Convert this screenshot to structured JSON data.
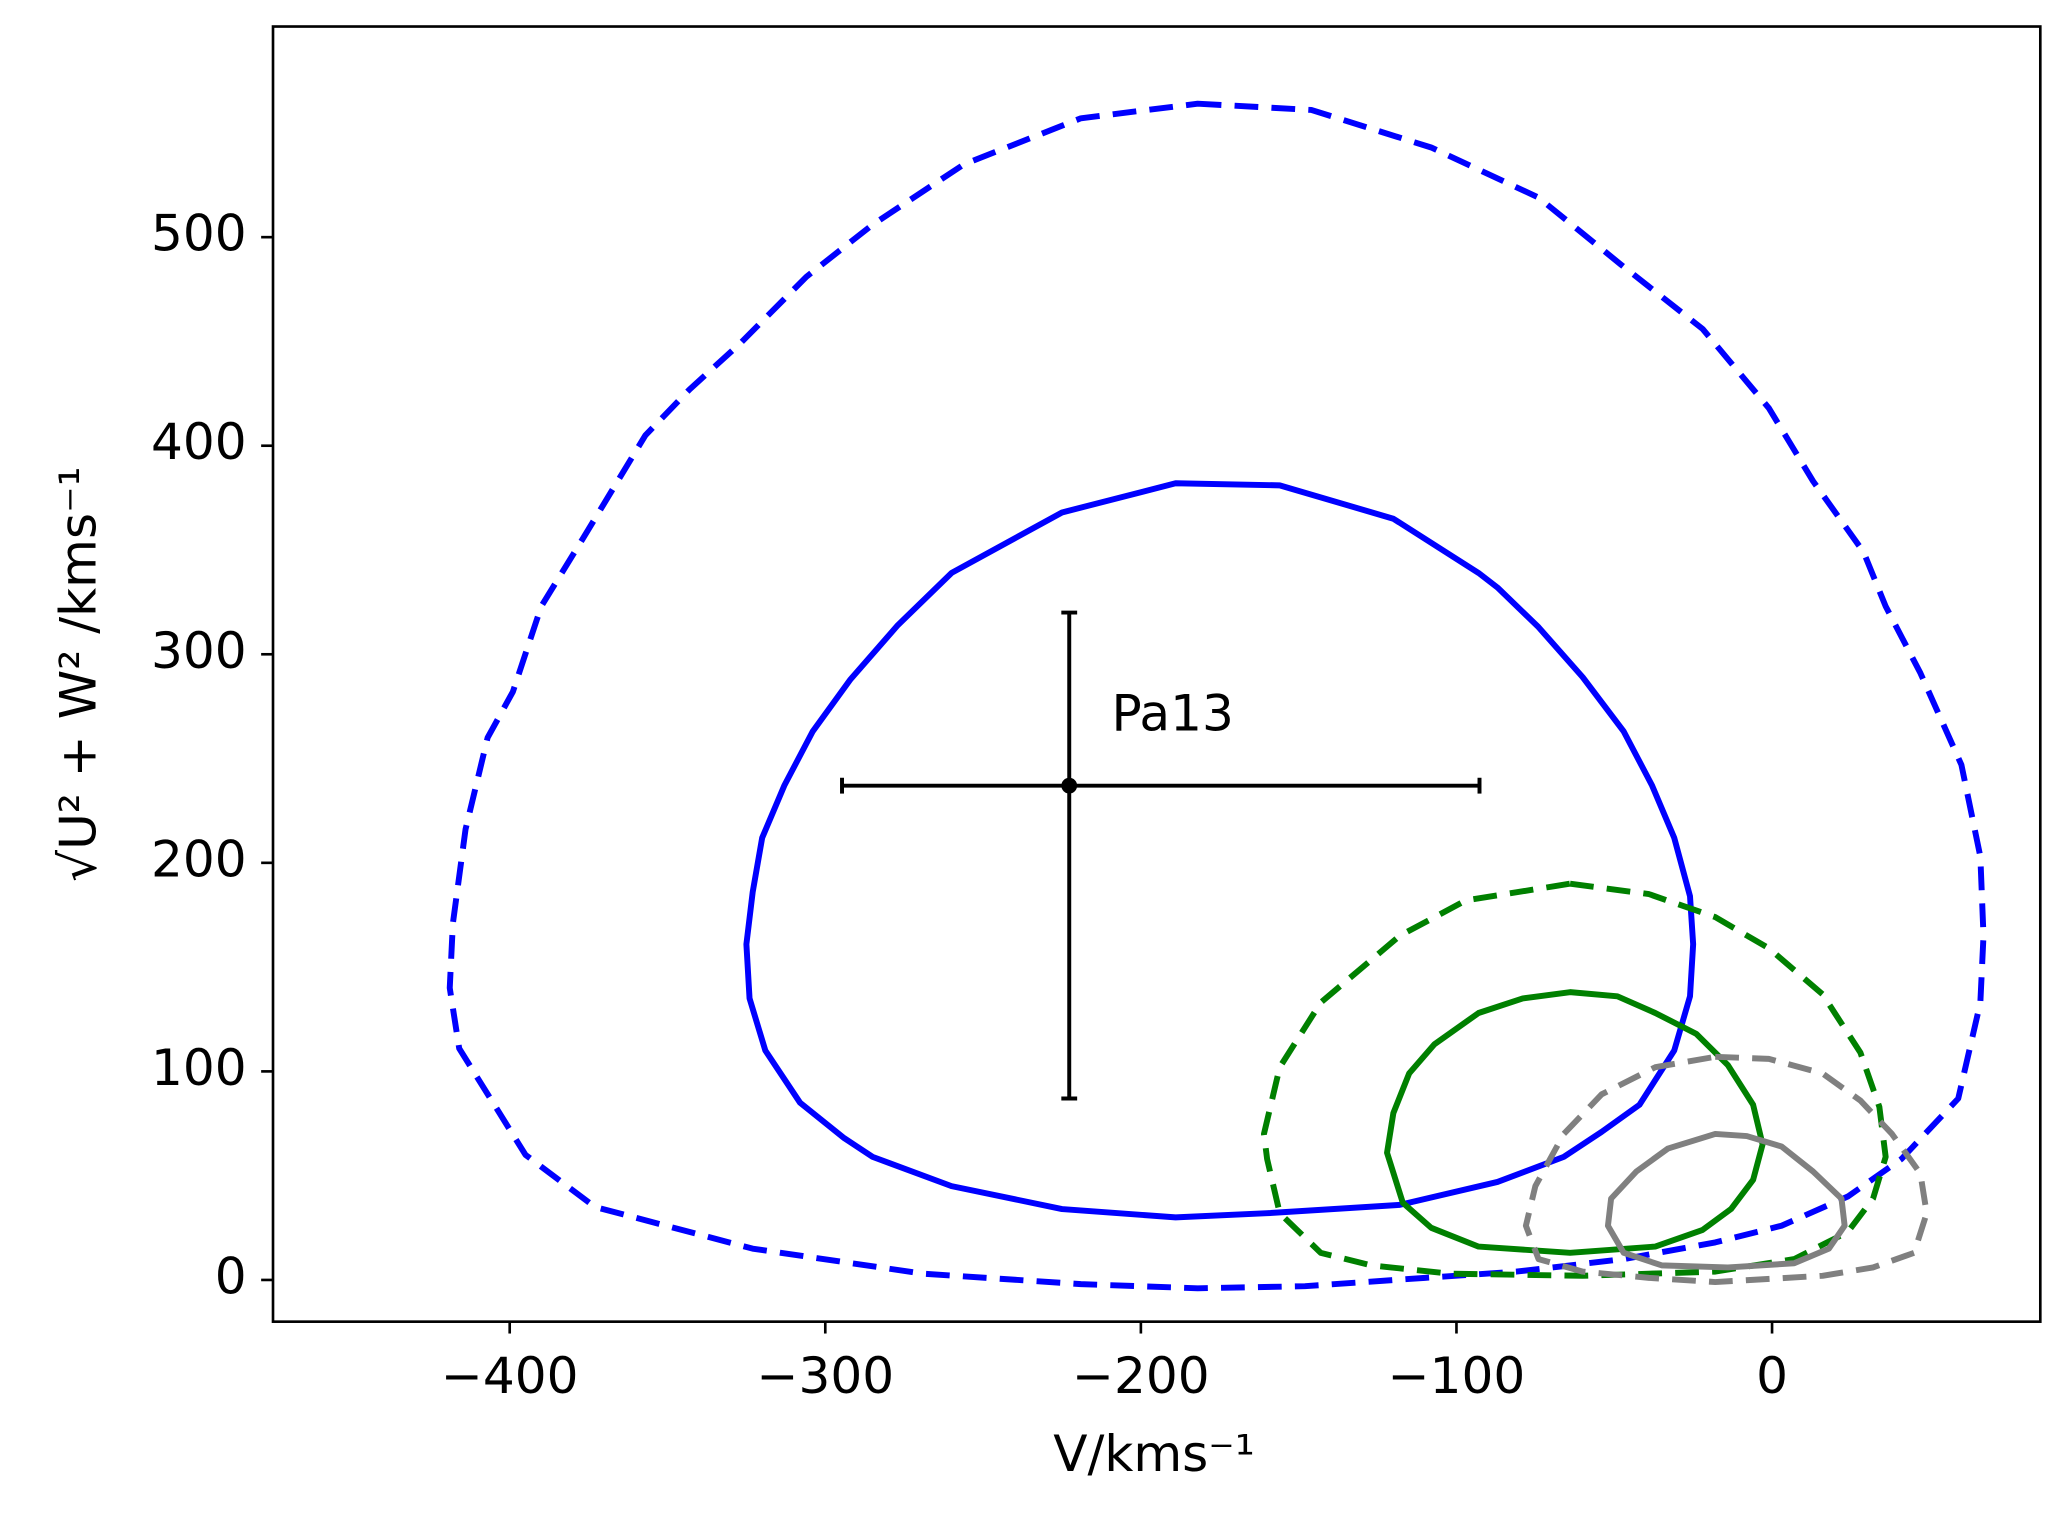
{
  "chart_data": {
    "type": "contour",
    "xlabel": "V/kms⁻¹",
    "ylabel": "√U² + W² /kms⁻¹",
    "xlim": [
      -475,
      85
    ],
    "ylim": [
      -20,
      601
    ],
    "xticks": [
      {
        "value": -400,
        "label": "−400"
      },
      {
        "value": -300,
        "label": "−300"
      },
      {
        "value": -200,
        "label": "−200"
      },
      {
        "value": -100,
        "label": "−100"
      },
      0
    ],
    "yticks": [
      0,
      100,
      200,
      300,
      400,
      500
    ],
    "series": [
      {
        "color": "#0000ff",
        "dashed": true,
        "x": [
          -182,
          -146,
          -108,
          -74,
          -48,
          -22,
          -1,
          13,
          29,
          36,
          47,
          60,
          66,
          67,
          66,
          59,
          41,
          24,
          3,
          -18,
          -47,
          -81,
          -110,
          -148,
          -182,
          -219,
          -269,
          -323,
          -373,
          -395,
          -416,
          -419,
          -418,
          -414,
          -407,
          -399,
          -390,
          -377,
          -357,
          -343,
          -327,
          -306,
          -285,
          -256,
          -219
        ],
        "y": [
          564,
          561,
          543,
          519,
          487,
          456,
          418,
          383,
          349,
          323,
          291,
          247,
          203,
          165,
          133,
          87,
          58,
          40,
          26,
          18,
          10,
          4,
          1,
          -3,
          -4,
          -2,
          3,
          15,
          35,
          60,
          111,
          140,
          171,
          216,
          260,
          282,
          323,
          355,
          405,
          427,
          449,
          481,
          506,
          535,
          557
        ]
      },
      {
        "color": "#0000ff",
        "dashed": false,
        "x": [
          -189,
          -156,
          -120,
          -93,
          -87,
          -74,
          -60,
          -47,
          -38,
          -31,
          -26,
          -25,
          -26,
          -31,
          -42,
          -54,
          -66,
          -87,
          -118,
          -160,
          -189,
          -225,
          -260,
          -285,
          -294,
          -308,
          -319,
          -324,
          -325,
          -323,
          -320,
          -313,
          -304,
          -292,
          -277,
          -260,
          -225
        ],
        "y": [
          382,
          381,
          365,
          339,
          332,
          313,
          289,
          263,
          237,
          212,
          184,
          161,
          136,
          110,
          84,
          71,
          59,
          47,
          36,
          32,
          30,
          34,
          45,
          59,
          68,
          85,
          110,
          135,
          161,
          186,
          212,
          237,
          263,
          288,
          314,
          339,
          368
        ]
      },
      {
        "color": "#008000",
        "dashed": true,
        "x": [
          -64,
          -39,
          -18,
          -1,
          16,
          28,
          34,
          36,
          32,
          24,
          7,
          -18,
          -60,
          -102,
          -127,
          -143,
          -156,
          -160,
          -161,
          -156,
          -143,
          -118,
          -97
        ],
        "y": [
          190,
          185,
          174,
          159,
          137,
          109,
          83,
          59,
          39,
          23,
          10,
          4,
          2,
          3,
          7,
          13,
          32,
          58,
          70,
          102,
          133,
          165,
          182
        ]
      },
      {
        "color": "#008000",
        "dashed": false,
        "x": [
          -64,
          -49,
          -37,
          -24,
          -14,
          -6,
          -3,
          -6,
          -13,
          -22,
          -37,
          -64,
          -93,
          -108,
          -117,
          -122,
          -120,
          -115,
          -107,
          -93,
          -79
        ],
        "y": [
          138,
          136,
          128,
          118,
          103,
          84,
          65,
          48,
          34,
          24,
          16,
          13,
          16,
          25,
          37,
          61,
          80,
          99,
          113,
          128,
          135
        ]
      },
      {
        "color": "#808080",
        "dashed": true,
        "x": [
          -18,
          -1,
          16,
          28,
          38,
          47,
          49,
          45,
          32,
          16,
          -18,
          -39,
          -60,
          -74,
          -78,
          -75,
          -66,
          -54,
          -37
        ],
        "y": [
          107,
          106,
          99,
          86,
          70,
          51,
          32,
          13,
          6,
          2,
          -1,
          1,
          4,
          10,
          26,
          45,
          70,
          89,
          102
        ]
      },
      {
        "color": "#808080",
        "dashed": false,
        "x": [
          -18,
          -8,
          3,
          13,
          22,
          23,
          18,
          7,
          -14,
          -35,
          -47,
          -52,
          -51,
          -43,
          -33
        ],
        "y": [
          70,
          69,
          64,
          52,
          39,
          26,
          15,
          8,
          6,
          7,
          13,
          26,
          39,
          52,
          63
        ]
      }
    ],
    "errorbars": [
      {
        "label": "Pa13",
        "color": "#000000",
        "x": -222.7,
        "y": 237,
        "xerr": [
          72,
          130
        ],
        "yerr": [
          150,
          83
        ]
      }
    ]
  }
}
